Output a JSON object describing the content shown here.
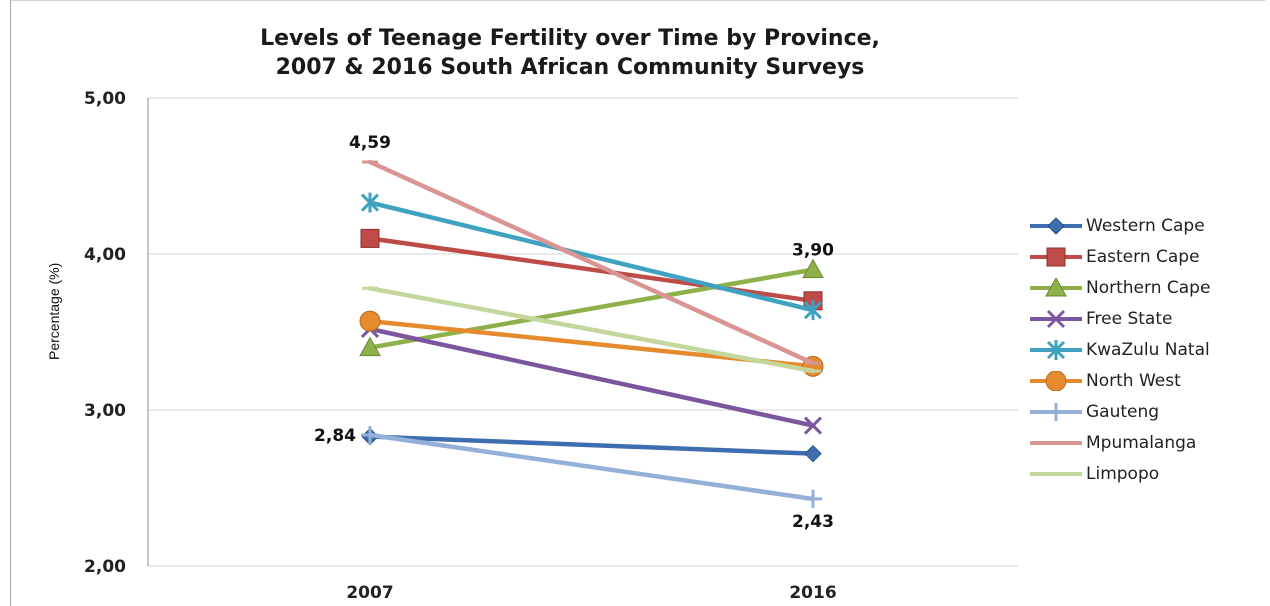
{
  "chart_data": {
    "type": "line",
    "title_line1": "Levels of Teenage Fertility over Time by Province,",
    "title_line2": "2007 & 2016 South African Community Surveys",
    "ylabel": "Percentage (%)",
    "xlabel": "",
    "categories": [
      "2007",
      "2016"
    ],
    "ylim": [
      2.0,
      5.0
    ],
    "yticks": [
      "2,00",
      "3,00",
      "4,00",
      "5,00"
    ],
    "grid": true,
    "legend_position": "right",
    "series": [
      {
        "name": "Western Cape",
        "values": [
          2.83,
          2.72
        ],
        "color": "#3d6fb0",
        "marker": "diamond"
      },
      {
        "name": "Eastern Cape",
        "values": [
          4.1,
          3.7
        ],
        "color": "#be4b48",
        "marker": "square"
      },
      {
        "name": "Northern Cape",
        "values": [
          3.4,
          3.9
        ],
        "color": "#8db04a",
        "marker": "triangle"
      },
      {
        "name": "Free State",
        "values": [
          3.52,
          2.9
        ],
        "color": "#7a569e",
        "marker": "x"
      },
      {
        "name": "KwaZulu Natal",
        "values": [
          4.33,
          3.64
        ],
        "color": "#3fa2c0",
        "marker": "star"
      },
      {
        "name": "North West",
        "values": [
          3.57,
          3.28
        ],
        "color": "#e68a2e",
        "marker": "circle"
      },
      {
        "name": "Gauteng",
        "values": [
          2.84,
          2.43
        ],
        "color": "#94afd8",
        "marker": "plus"
      },
      {
        "name": "Mpumalanga",
        "values": [
          4.59,
          3.3
        ],
        "color": "#d99594",
        "marker": "dash"
      },
      {
        "name": "Limpopo",
        "values": [
          3.78,
          3.25
        ],
        "color": "#c3d69b",
        "marker": "dash"
      }
    ],
    "data_labels": [
      {
        "text": "4,59",
        "series": "Mpumalanga",
        "index": 0,
        "pos": "above"
      },
      {
        "text": "3,90",
        "series": "Northern Cape",
        "index": 1,
        "pos": "above"
      },
      {
        "text": "2,84",
        "series": "Gauteng",
        "index": 0,
        "pos": "left"
      },
      {
        "text": "2,43",
        "series": "Gauteng",
        "index": 1,
        "pos": "below"
      }
    ]
  }
}
